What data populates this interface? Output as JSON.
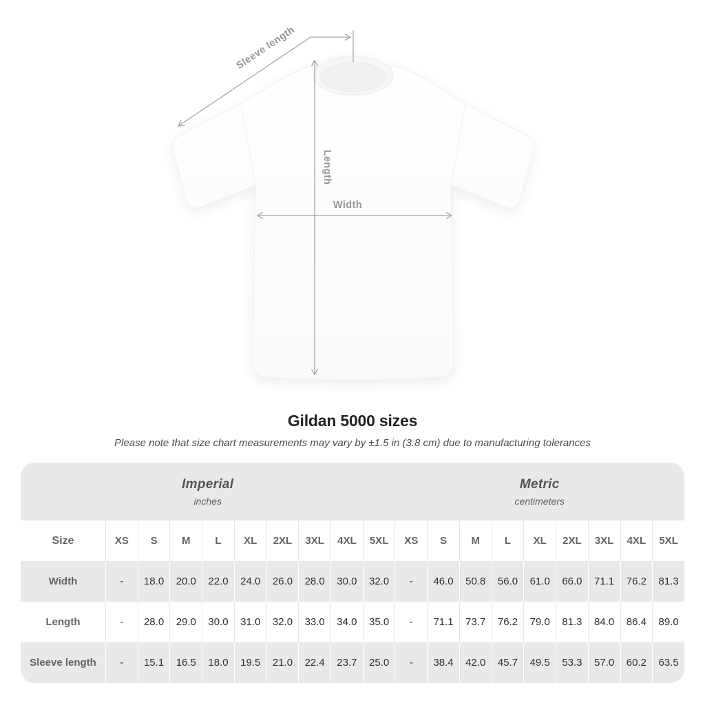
{
  "diagram": {
    "labels": {
      "sleeve_length": "Sleeve length",
      "length": "Length",
      "width": "Width"
    }
  },
  "title": "Gildan 5000 sizes",
  "subtitle": "Please note that size chart measurements may vary by ±1.5 in (3.8 cm) due to manufacturing tolerances",
  "table": {
    "unit_groups": [
      {
        "name": "Imperial",
        "unit": "inches"
      },
      {
        "name": "Metric",
        "unit": "centimeters"
      }
    ],
    "size_header": "Size",
    "sizes": [
      "XS",
      "S",
      "M",
      "L",
      "XL",
      "2XL",
      "3XL",
      "4XL",
      "5XL"
    ],
    "rows": [
      {
        "label": "Width",
        "imperial": [
          "-",
          "18.0",
          "20.0",
          "22.0",
          "24.0",
          "26.0",
          "28.0",
          "30.0",
          "32.0"
        ],
        "metric": [
          "-",
          "46.0",
          "50.8",
          "56.0",
          "61.0",
          "66.0",
          "71.1",
          "76.2",
          "81.3"
        ]
      },
      {
        "label": "Length",
        "imperial": [
          "-",
          "28.0",
          "29.0",
          "30.0",
          "31.0",
          "32.0",
          "33.0",
          "34.0",
          "35.0"
        ],
        "metric": [
          "-",
          "71.1",
          "73.7",
          "76.2",
          "79.0",
          "81.3",
          "84.0",
          "86.4",
          "89.0"
        ]
      },
      {
        "label": "Sleeve length",
        "imperial": [
          "-",
          "15.1",
          "16.5",
          "18.0",
          "19.5",
          "21.0",
          "22.4",
          "23.7",
          "25.0"
        ],
        "metric": [
          "-",
          "38.4",
          "42.0",
          "45.7",
          "49.5",
          "53.3",
          "57.0",
          "60.2",
          "63.5"
        ]
      }
    ]
  },
  "colors": {
    "row-gray": "#e9e9e9",
    "line-gray": "#a6a6a6",
    "diagram-label": "#979797",
    "label-gray": "#646464",
    "value-dark": "#2f2f2f",
    "title-color": "#222222"
  }
}
